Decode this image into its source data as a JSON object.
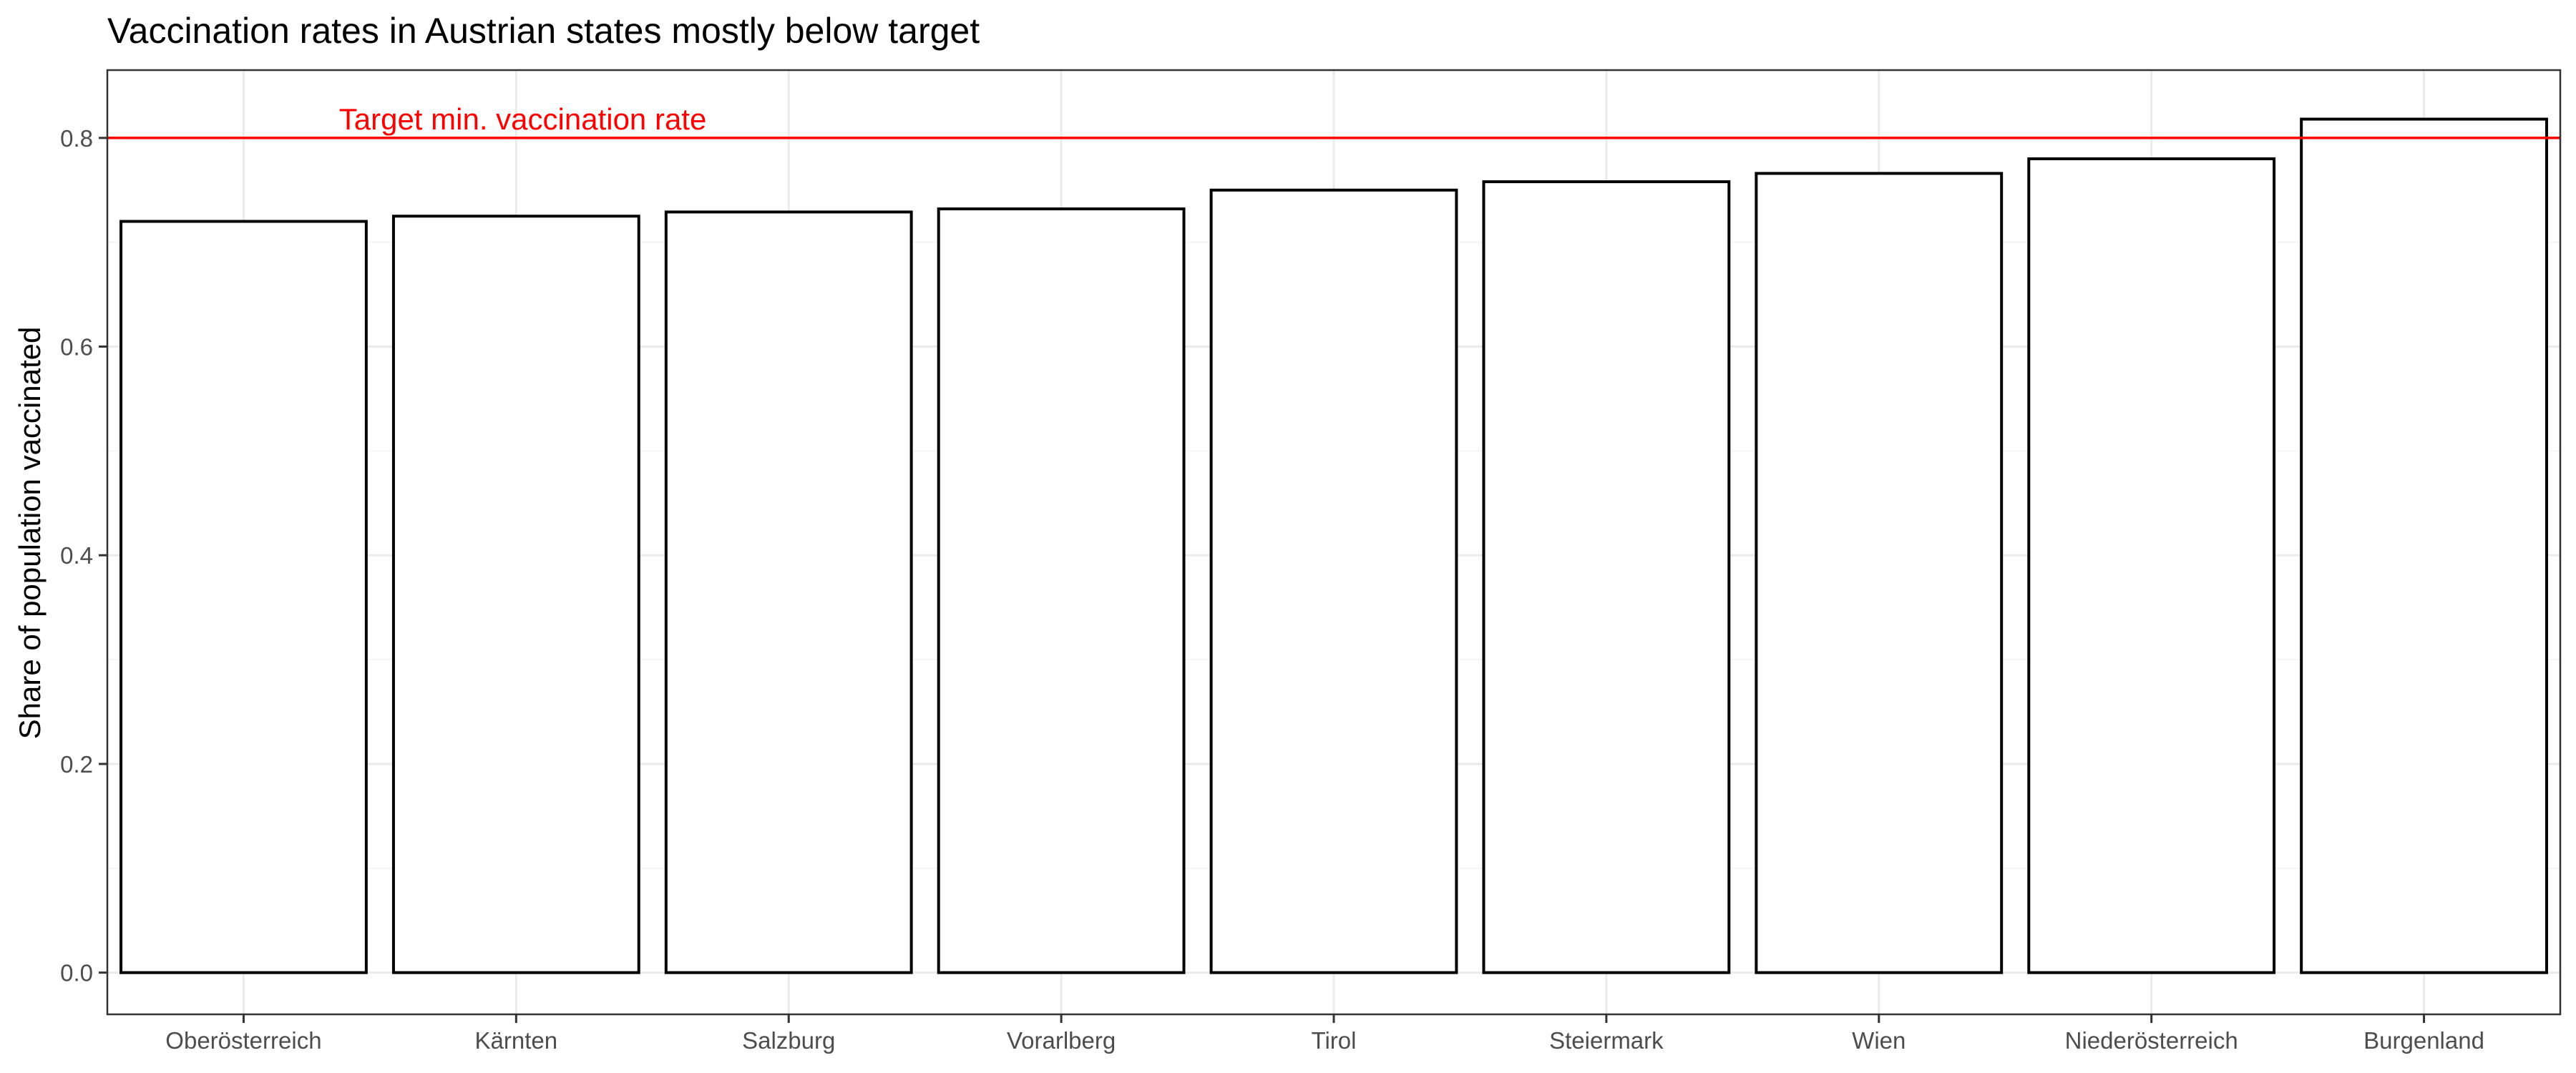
{
  "chart_data": {
    "type": "bar",
    "title": "Vaccination rates in Austrian states mostly below target",
    "xlabel": "",
    "ylabel": "Share of population vaccinated",
    "categories": [
      "Oberösterreich",
      "Kärnten",
      "Salzburg",
      "Vorarlberg",
      "Tirol",
      "Steiermark",
      "Wien",
      "Niederösterreich",
      "Burgenland"
    ],
    "values": [
      0.72,
      0.725,
      0.729,
      0.732,
      0.75,
      0.758,
      0.766,
      0.78,
      0.818
    ],
    "ylim": [
      -0.04,
      0.865
    ],
    "yticks": [
      0.0,
      0.2,
      0.4,
      0.6,
      0.8
    ],
    "ytick_labels": [
      "0.0",
      "0.2",
      "0.4",
      "0.6",
      "0.8"
    ],
    "grid": true,
    "legend": "none",
    "reference_line": {
      "y": 0.8,
      "label": "Target min. vaccination rate",
      "color": "#ff0000"
    },
    "colors": {
      "bar_fill": "#ffffff",
      "bar_stroke": "#000000",
      "grid_major": "#ebebeb",
      "grid_minor": "#f5f5f5",
      "panel_border": "#333333",
      "tick_label": "#4d4d4d"
    }
  }
}
